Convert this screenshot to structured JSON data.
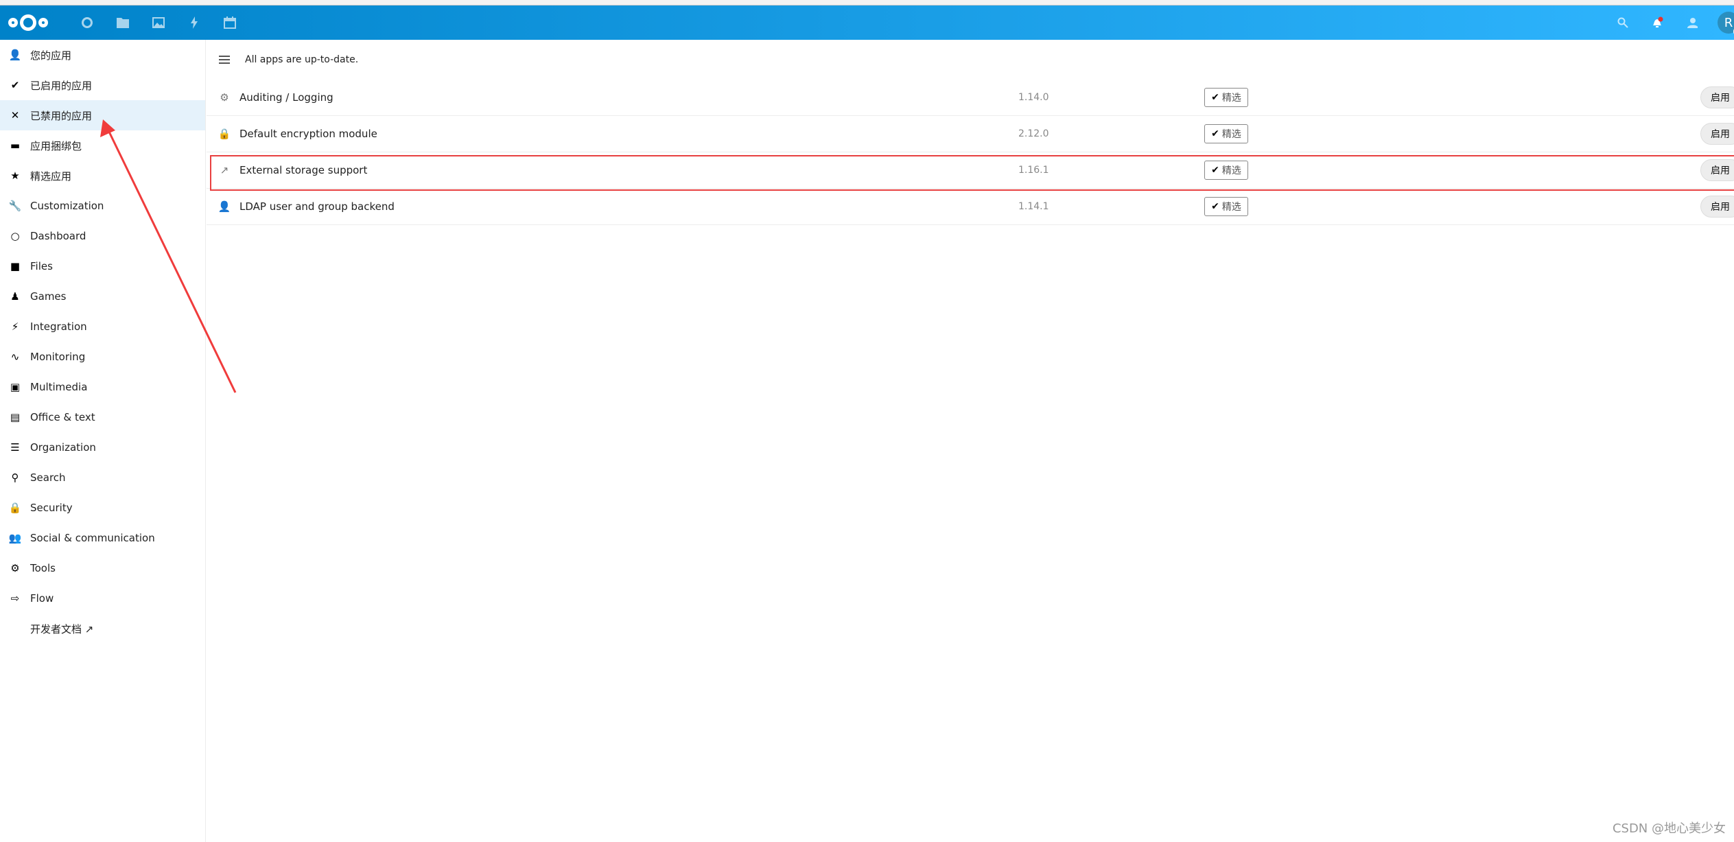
{
  "header": {
    "logo": "nextcloud",
    "apps": [
      "dashboard-icon",
      "files-icon",
      "photos-icon",
      "activity-icon",
      "calendar-icon"
    ],
    "avatar_letter": "R",
    "accent": "#0082c9",
    "notification_dot": "#e9322d"
  },
  "sidebar": {
    "items": [
      {
        "label": "您的应用",
        "icon": "user-icon"
      },
      {
        "label": "已启用的应用",
        "icon": "check-icon"
      },
      {
        "label": "已禁用的应用",
        "icon": "close-icon",
        "active": true
      },
      {
        "label": "应用捆绑包",
        "icon": "bundle-icon"
      },
      {
        "label": "精选应用",
        "icon": "star-icon"
      },
      {
        "label": "Customization",
        "icon": "wrench-icon"
      },
      {
        "label": "Dashboard",
        "icon": "circle-icon"
      },
      {
        "label": "Files",
        "icon": "folder-icon"
      },
      {
        "label": "Games",
        "icon": "joystick-icon"
      },
      {
        "label": "Integration",
        "icon": "plug-icon"
      },
      {
        "label": "Monitoring",
        "icon": "pulse-icon"
      },
      {
        "label": "Multimedia",
        "icon": "image-icon"
      },
      {
        "label": "Office & text",
        "icon": "document-icon"
      },
      {
        "label": "Organization",
        "icon": "list-icon"
      },
      {
        "label": "Search",
        "icon": "search-icon"
      },
      {
        "label": "Security",
        "icon": "lock-icon"
      },
      {
        "label": "Social & communication",
        "icon": "contacts-icon"
      },
      {
        "label": "Tools",
        "icon": "gear-icon"
      },
      {
        "label": "Flow",
        "icon": "flow-icon"
      },
      {
        "label": "开发者文档 ↗",
        "icon": ""
      }
    ]
  },
  "main": {
    "status": "All apps are up-to-date.",
    "apps": [
      {
        "name": "Auditing / Logging",
        "version": "1.14.0",
        "badge": "精选",
        "action": "启用",
        "icon": "gear-icon"
      },
      {
        "name": "Default encryption module",
        "version": "2.12.0",
        "badge": "精选",
        "action": "启用",
        "icon": "lock-icon"
      },
      {
        "name": "External storage support",
        "version": "1.16.1",
        "badge": "精选",
        "action": "启用",
        "icon": "external-icon"
      },
      {
        "name": "LDAP user and group backend",
        "version": "1.14.1",
        "badge": "精选",
        "action": "启用",
        "icon": "user-icon"
      }
    ]
  },
  "watermark": "CSDN @地心美少女"
}
